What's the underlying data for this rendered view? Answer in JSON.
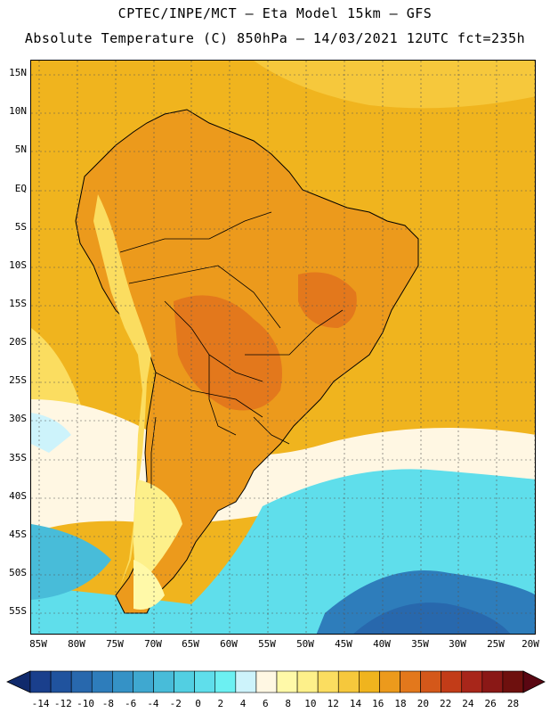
{
  "header": {
    "title_line1": "CPTEC/INPE/MCT –  Eta Model 15km – GFS",
    "title_line2": "Absolute Temperature (C) 850hPa – 14/03/2021 12UTC fct=235h"
  },
  "axes": {
    "lat_labels": [
      "15N",
      "10N",
      "5N",
      "EQ",
      "5S",
      "10S",
      "15S",
      "20S",
      "25S",
      "30S",
      "35S",
      "40S",
      "45S",
      "50S",
      "55S"
    ],
    "lon_labels": [
      "85W",
      "80W",
      "75W",
      "70W",
      "65W",
      "60W",
      "55W",
      "50W",
      "45W",
      "40W",
      "35W",
      "30W",
      "25W",
      "20W"
    ]
  },
  "colorbar": {
    "tick_labels": [
      "-14",
      "-12",
      "-10",
      "-8",
      "-6",
      "-4",
      "-2",
      "0",
      "2",
      "4",
      "6",
      "8",
      "10",
      "12",
      "14",
      "16",
      "18",
      "20",
      "22",
      "24",
      "26",
      "28"
    ],
    "colors": [
      "#1a3f8c",
      "#20539e",
      "#2868ad",
      "#2e7dbb",
      "#3592c6",
      "#3fa8d0",
      "#48bcd9",
      "#52cfe2",
      "#5fdeeb",
      "#6cf0f2",
      "#cdf3fb",
      "#fff7e3",
      "#fff9a8",
      "#fdf08a",
      "#fbdd60",
      "#f6c83c",
      "#f0b41e",
      "#ec9a1c",
      "#e3781c",
      "#d4581a",
      "#c23c18",
      "#a8261a",
      "#8a1816",
      "#6e100e"
    ],
    "under_color": "#102a6c",
    "over_color": "#5a0712"
  },
  "map_colors": {
    "ocean_north": "#f0b41e",
    "continent_warm": "#ec9a1c",
    "continent_hot": "#e3781c",
    "andes_cool": "#fbdd60",
    "south_pale": "#fff7e3",
    "south_cold": "#5fdeeb",
    "deep_cold": "#2e7dbb",
    "coastline": "#000000"
  }
}
